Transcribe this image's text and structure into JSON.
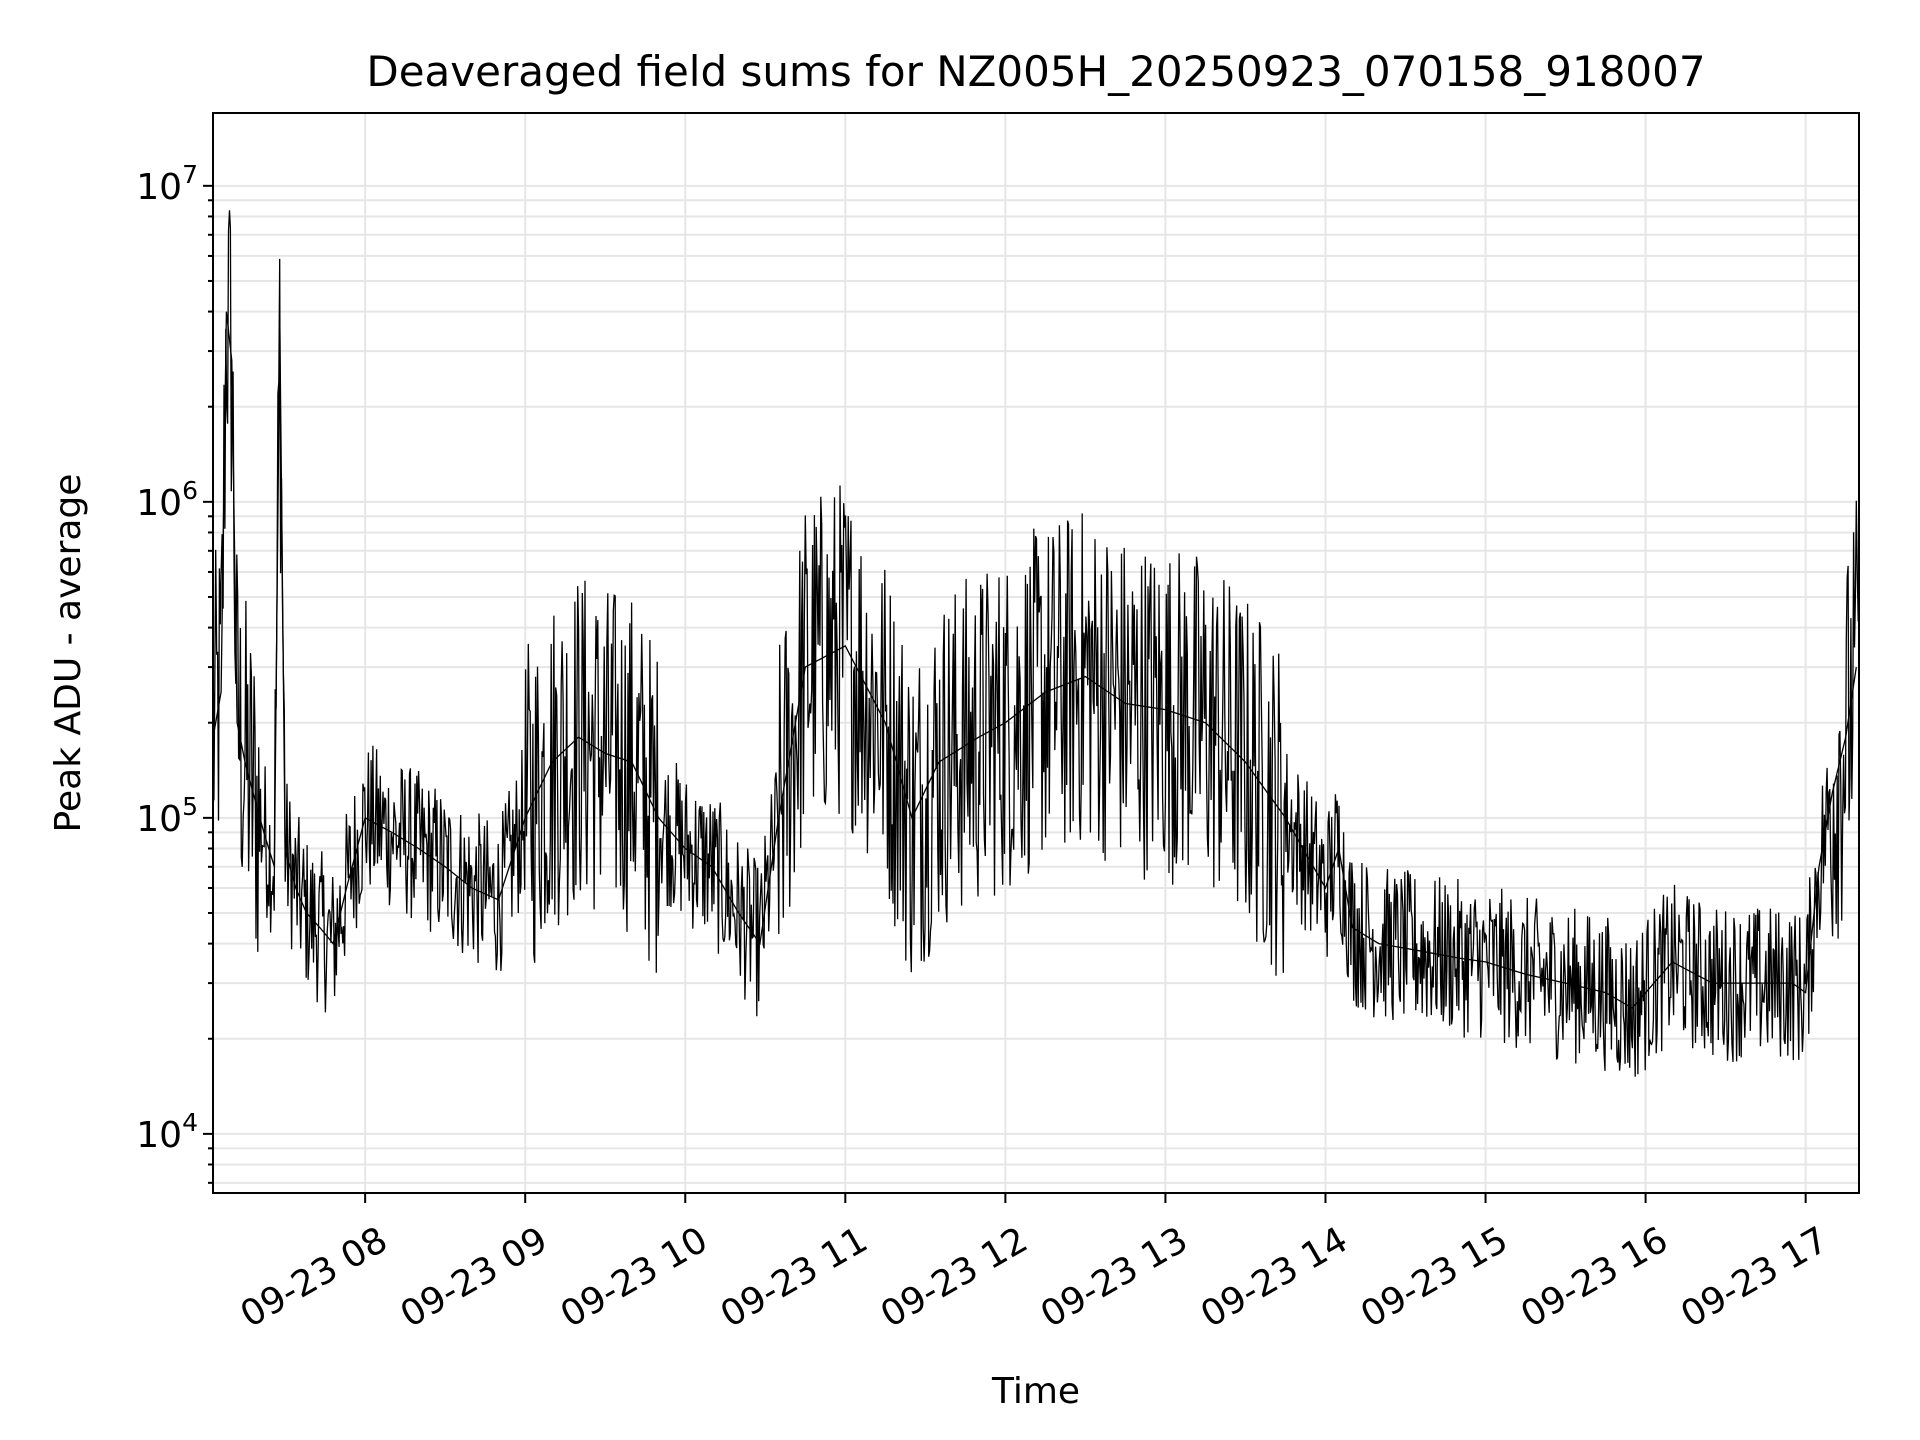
{
  "chart_data": {
    "type": "line",
    "title": "Deaveraged field sums for NZ005H_20250923_070158_918007",
    "xlabel": "Time",
    "ylabel": "Peak ADU - average",
    "y_scale": "log",
    "ylim": [
      6500,
      17000000
    ],
    "xlim": [
      "2025-09-23 07:02:58",
      "2025-09-23 17:20:00"
    ],
    "y_ticks": [
      {
        "value": 10000,
        "base": "10",
        "exp": "4"
      },
      {
        "value": 100000,
        "base": "10",
        "exp": "5"
      },
      {
        "value": 1000000,
        "base": "10",
        "exp": "6"
      },
      {
        "value": 10000000,
        "base": "10",
        "exp": "7"
      }
    ],
    "x_ticks": [
      {
        "value": "2025-09-23 08:00",
        "label": "09-23 08"
      },
      {
        "value": "2025-09-23 09:00",
        "label": "09-23 09"
      },
      {
        "value": "2025-09-23 10:00",
        "label": "09-23 10"
      },
      {
        "value": "2025-09-23 11:00",
        "label": "09-23 11"
      },
      {
        "value": "2025-09-23 12:00",
        "label": "09-23 12"
      },
      {
        "value": "2025-09-23 13:00",
        "label": "09-23 13"
      },
      {
        "value": "2025-09-23 14:00",
        "label": "09-23 14"
      },
      {
        "value": "2025-09-23 15:00",
        "label": "09-23 15"
      },
      {
        "value": "2025-09-23 16:00",
        "label": "09-23 16"
      },
      {
        "value": "2025-09-23 17:00",
        "label": "09-23 17"
      }
    ],
    "grid": true,
    "line_color": "#000000",
    "grid_color": "#e6e6e6",
    "series": [
      {
        "x": [
          "2025-09-23 07:03",
          "2025-09-23 07:06",
          "2025-09-23 07:08",
          "2025-09-23 07:10",
          "2025-09-23 07:12",
          "2025-09-23 07:15",
          "2025-09-23 07:18",
          "2025-09-23 07:22",
          "2025-09-23 07:26",
          "2025-09-23 07:28",
          "2025-09-23 07:30",
          "2025-09-23 07:34",
          "2025-09-23 07:38",
          "2025-09-23 07:43",
          "2025-09-23 07:48",
          "2025-09-23 07:53",
          "2025-09-23 08:00",
          "2025-09-23 08:10",
          "2025-09-23 08:20",
          "2025-09-23 08:30",
          "2025-09-23 08:40",
          "2025-09-23 08:50",
          "2025-09-23 09:00",
          "2025-09-23 09:10",
          "2025-09-23 09:20",
          "2025-09-23 09:30",
          "2025-09-23 09:40",
          "2025-09-23 09:50",
          "2025-09-23 10:00",
          "2025-09-23 10:10",
          "2025-09-23 10:20",
          "2025-09-23 10:28",
          "2025-09-23 10:35",
          "2025-09-23 10:45",
          "2025-09-23 11:00",
          "2025-09-23 11:15",
          "2025-09-23 11:25",
          "2025-09-23 11:35",
          "2025-09-23 11:50",
          "2025-09-23 12:00",
          "2025-09-23 12:15",
          "2025-09-23 12:30",
          "2025-09-23 12:45",
          "2025-09-23 13:00",
          "2025-09-23 13:15",
          "2025-09-23 13:30",
          "2025-09-23 13:45",
          "2025-09-23 14:00",
          "2025-09-23 14:05",
          "2025-09-23 14:10",
          "2025-09-23 14:20",
          "2025-09-23 14:35",
          "2025-09-23 14:50",
          "2025-09-23 15:00",
          "2025-09-23 15:15",
          "2025-09-23 15:30",
          "2025-09-23 15:45",
          "2025-09-23 15:55",
          "2025-09-23 16:10",
          "2025-09-23 16:25",
          "2025-09-23 16:40",
          "2025-09-23 16:55",
          "2025-09-23 17:00",
          "2025-09-23 17:05",
          "2025-09-23 17:10",
          "2025-09-23 17:15",
          "2025-09-23 17:19"
        ],
        "y": [
          180000,
          250000,
          4000000,
          2800000,
          200000,
          150000,
          120000,
          90000,
          70000,
          3700000,
          80000,
          60000,
          50000,
          45000,
          40000,
          60000,
          100000,
          90000,
          80000,
          70000,
          60000,
          55000,
          100000,
          150000,
          180000,
          160000,
          150000,
          100000,
          80000,
          70000,
          50000,
          40000,
          100000,
          300000,
          350000,
          200000,
          100000,
          150000,
          180000,
          200000,
          250000,
          280000,
          230000,
          220000,
          200000,
          150000,
          100000,
          60000,
          80000,
          45000,
          40000,
          38000,
          36000,
          35000,
          32000,
          30000,
          28000,
          25000,
          35000,
          30000,
          30000,
          30000,
          28000,
          70000,
          120000,
          180000,
          300000
        ]
      }
    ]
  }
}
